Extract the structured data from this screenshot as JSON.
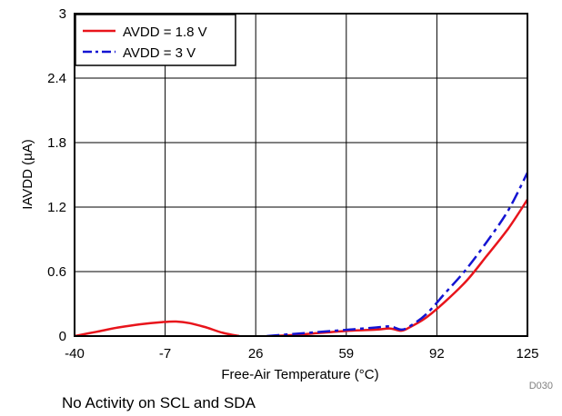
{
  "chart_data": {
    "type": "line",
    "xlabel": "Free-Air Temperature (°C)",
    "ylabel": "IAVDD (µA)",
    "xlim": [
      -40,
      125
    ],
    "ylim": [
      0,
      3
    ],
    "xticks": [
      -40,
      -7,
      26,
      59,
      92,
      125
    ],
    "yticks": [
      0,
      0.6,
      1.2,
      1.8,
      2.4,
      3
    ],
    "ytick_labels": [
      "0",
      "0.6",
      "1.2",
      "1.8",
      "2.4",
      "3"
    ],
    "grid": true,
    "legend_position": "top-left",
    "series": [
      {
        "name": "AVDD = 1.8 V",
        "color": "#e8141b",
        "style": "solid",
        "segments": [
          [
            [
              -40,
              0.0
            ],
            [
              -32,
              0.04
            ],
            [
              -24,
              0.08
            ],
            [
              -16,
              0.11
            ],
            [
              -8,
              0.13
            ],
            [
              -3,
              0.135
            ],
            [
              2,
              0.12
            ],
            [
              8,
              0.08
            ],
            [
              14,
              0.03
            ],
            [
              20,
              0.0
            ]
          ],
          [
            [
              32,
              0.0
            ],
            [
              40,
              0.01
            ],
            [
              50,
              0.03
            ],
            [
              60,
              0.05
            ],
            [
              70,
              0.06
            ],
            [
              75,
              0.07
            ],
            [
              79,
              0.05
            ],
            [
              82,
              0.08
            ],
            [
              88,
              0.17
            ],
            [
              95,
              0.32
            ],
            [
              103,
              0.52
            ],
            [
              110,
              0.74
            ],
            [
              118,
              1.0
            ],
            [
              125,
              1.27
            ]
          ]
        ]
      },
      {
        "name": "AVDD = 3 V",
        "color": "#1414d2",
        "style": "dashdot",
        "segments": [
          [
            [
              30,
              0.0
            ],
            [
              40,
              0.02
            ],
            [
              50,
              0.04
            ],
            [
              60,
              0.06
            ],
            [
              70,
              0.08
            ],
            [
              75,
              0.09
            ],
            [
              79,
              0.06
            ],
            [
              82,
              0.09
            ],
            [
              88,
              0.2
            ],
            [
              95,
              0.4
            ],
            [
              102,
              0.6
            ],
            [
              110,
              0.87
            ],
            [
              118,
              1.17
            ],
            [
              125,
              1.52
            ]
          ]
        ]
      }
    ]
  },
  "figure_id": "D030",
  "caption": "No Activity on SCL and SDA"
}
